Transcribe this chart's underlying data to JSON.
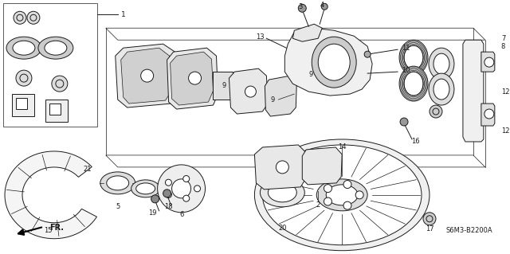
{
  "background_color": "#ffffff",
  "line_color": "#1a1a1a",
  "diagram_code": "S6M3-B2200A",
  "fig_width": 6.4,
  "fig_height": 3.19,
  "dpi": 100,
  "label_fontsize": 6.5,
  "code_fontsize": 6.0
}
